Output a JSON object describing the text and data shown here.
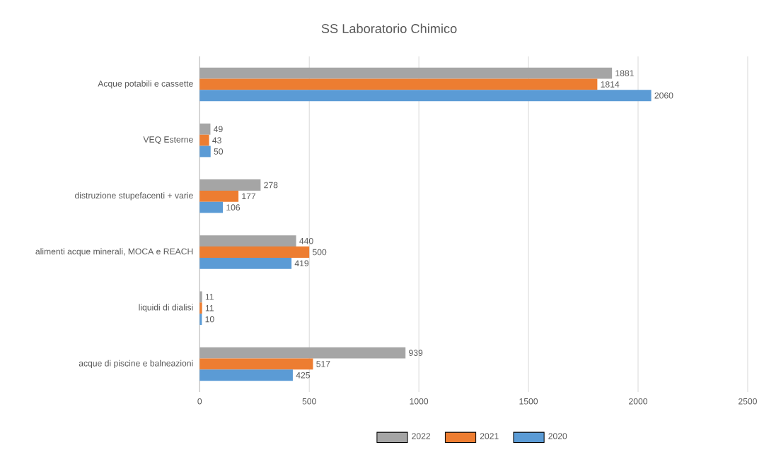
{
  "chart_data": {
    "type": "bar",
    "orientation": "horizontal",
    "title": "SS Laboratorio Chimico",
    "categories": [
      "Acque potabili e cassette",
      "VEQ Esterne",
      "distruzione stupefacenti + varie",
      "alimenti acque minerali, MOCA e REACH",
      "liquidi di dialisi",
      "acque di piscine e balneazioni"
    ],
    "series": [
      {
        "name": "2022",
        "color": "#a5a5a5",
        "values": [
          1881,
          49,
          278,
          440,
          11,
          939
        ]
      },
      {
        "name": "2021",
        "color": "#ed7d31",
        "values": [
          1814,
          43,
          177,
          500,
          11,
          517
        ]
      },
      {
        "name": "2020",
        "color": "#5b9bd5",
        "values": [
          2060,
          50,
          106,
          419,
          10,
          425
        ]
      }
    ],
    "xlim": [
      0,
      2500
    ],
    "xticks": [
      0,
      500,
      1000,
      1500,
      2000,
      2500
    ],
    "grid": "x",
    "legend": "bottom",
    "data_labels": true
  }
}
